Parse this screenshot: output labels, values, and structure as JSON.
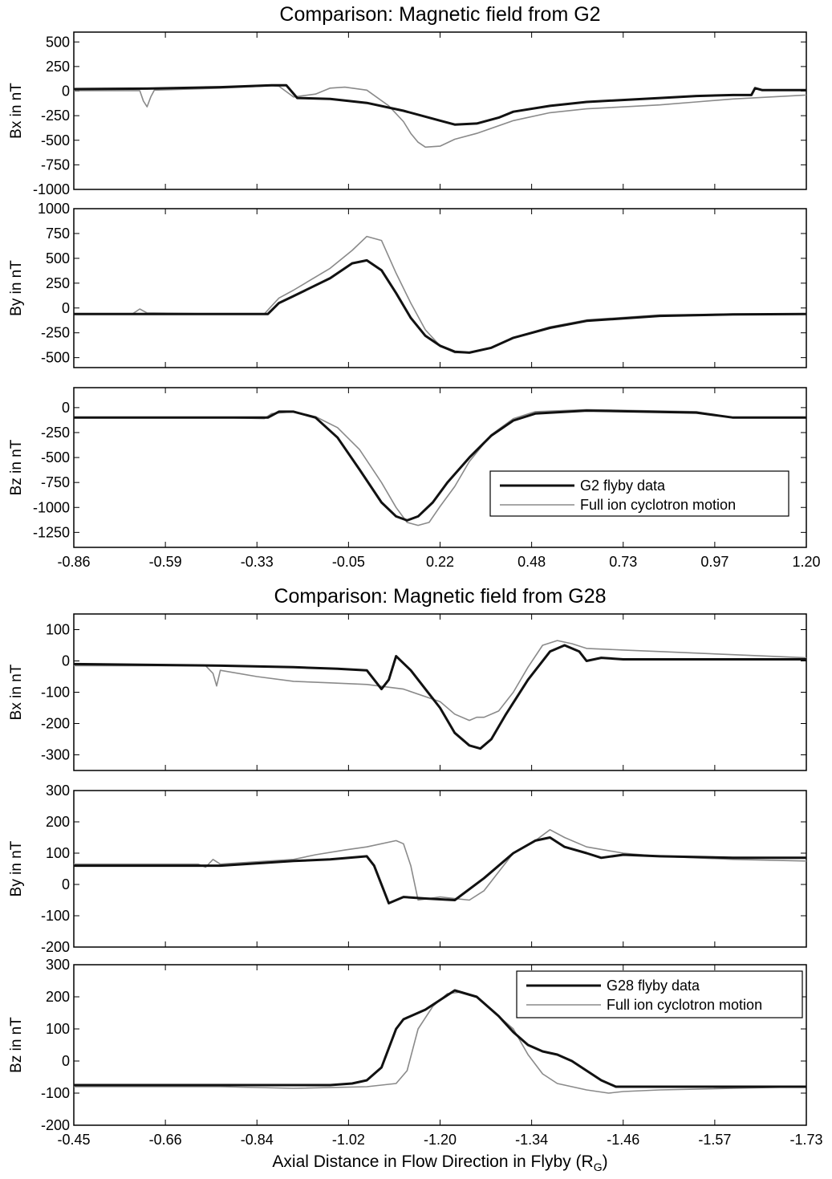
{
  "figure1": {
    "title": "Comparison: Magnetic field from G2",
    "legend": {
      "series": [
        "G2 flyby data",
        "Full ion cyclotron motion"
      ]
    }
  },
  "figure2": {
    "title": "Comparison: Magnetic field from G28",
    "legend": {
      "series": [
        "G28 flyby data",
        "Full ion cyclotron motion"
      ]
    }
  },
  "xlabel": {
    "main": "Axial Distance in Flow Direction in Flyby (R",
    "sub": "G",
    "close": ")"
  },
  "colors": {
    "flyby": "#111111",
    "model": "#8a8a8a"
  },
  "chart_data": [
    {
      "type": "line",
      "group": "G2",
      "panel": "Bx",
      "ylabel": "Bx in nT",
      "ylim": [
        -1000,
        600
      ],
      "yticks": [
        500,
        250,
        0,
        -250,
        -500,
        -750,
        -1000
      ],
      "xticks": [
        "-0.86",
        "-0.59",
        "-0.33",
        "-0.05",
        "0.22",
        "0.48",
        "0.73",
        "0.97",
        "1.20"
      ],
      "show_xtick_labels": false,
      "legend": null,
      "series": [
        {
          "name": "G2 flyby data",
          "x": [
            0,
            10,
            20,
            27,
            29,
            30.5,
            35,
            40,
            45,
            50,
            52,
            55,
            58,
            60,
            65,
            70,
            80,
            85,
            90,
            92.5,
            93,
            94,
            100
          ],
          "y": [
            20,
            25,
            40,
            60,
            60,
            -70,
            -80,
            -120,
            -200,
            -300,
            -340,
            -330,
            -270,
            -210,
            -150,
            -110,
            -70,
            -50,
            -40,
            -40,
            30,
            10,
            10
          ]
        },
        {
          "name": "Full ion cyclotron motion",
          "x": [
            0,
            9,
            9.5,
            10,
            10.5,
            11,
            20,
            27,
            28,
            30,
            33,
            35,
            37,
            40,
            43,
            45,
            46,
            47,
            48,
            50,
            52,
            55,
            60,
            65,
            70,
            80,
            85,
            90,
            100
          ],
          "y": [
            5,
            5,
            -100,
            -160,
            -60,
            10,
            30,
            55,
            50,
            -60,
            -30,
            30,
            40,
            10,
            -150,
            -310,
            -430,
            -520,
            -570,
            -560,
            -490,
            -430,
            -300,
            -220,
            -180,
            -140,
            -110,
            -80,
            -40
          ]
        }
      ]
    },
    {
      "type": "line",
      "group": "G2",
      "panel": "By",
      "ylabel": "By in nT",
      "ylim": [
        -600,
        1000
      ],
      "yticks": [
        1000,
        750,
        500,
        250,
        0,
        -250,
        -500
      ],
      "xticks": [
        "-0.86",
        "-0.59",
        "-0.33",
        "-0.05",
        "0.22",
        "0.48",
        "0.73",
        "0.97",
        "1.20"
      ],
      "show_xtick_labels": false,
      "legend": null,
      "series": [
        {
          "name": "G2 flyby data",
          "x": [
            0,
            20,
            26.5,
            28,
            30,
            35,
            38,
            40,
            42,
            44,
            46,
            48,
            50,
            52,
            54,
            57,
            60,
            65,
            70,
            80,
            90,
            100
          ],
          "y": [
            -60,
            -60,
            -60,
            50,
            120,
            300,
            450,
            480,
            380,
            150,
            -100,
            -280,
            -380,
            -440,
            -450,
            -400,
            -300,
            -200,
            -130,
            -80,
            -65,
            -60
          ]
        },
        {
          "name": "Full ion cyclotron motion",
          "x": [
            0,
            8,
            9,
            10,
            20,
            26,
            28,
            30,
            35,
            38,
            40,
            42,
            44,
            46,
            48,
            50,
            52,
            54,
            57,
            60,
            65,
            70,
            80,
            90,
            100
          ],
          "y": [
            -60,
            -60,
            -10,
            -50,
            -60,
            -60,
            100,
            180,
            400,
            580,
            720,
            680,
            350,
            50,
            -220,
            -380,
            -450,
            -450,
            -400,
            -300,
            -190,
            -120,
            -70,
            -60,
            -60
          ]
        }
      ]
    },
    {
      "type": "line",
      "group": "G2",
      "panel": "Bz",
      "ylabel": "Bz in nT",
      "ylim": [
        -1400,
        200
      ],
      "yticks": [
        0,
        -250,
        -500,
        -750,
        -1000,
        -1250
      ],
      "xticks": [
        "-0.86",
        "-0.59",
        "-0.33",
        "-0.05",
        "0.22",
        "0.48",
        "0.73",
        "0.97",
        "1.20"
      ],
      "show_xtick_labels": true,
      "legend": "bottom-right",
      "series": [
        {
          "name": "G2 flyby data",
          "x": [
            0,
            20,
            26.5,
            28,
            30,
            33,
            36,
            39,
            42,
            44,
            45.5,
            47,
            49,
            51,
            54,
            57,
            60,
            63,
            70,
            85,
            88,
            90,
            100
          ],
          "y": [
            -100,
            -100,
            -100,
            -40,
            -40,
            -100,
            -300,
            -620,
            -950,
            -1090,
            -1130,
            -1090,
            -950,
            -750,
            -500,
            -280,
            -130,
            -60,
            -30,
            -50,
            -80,
            -100,
            -100
          ]
        },
        {
          "name": "Full ion cyclotron motion",
          "x": [
            0,
            20,
            26,
            27,
            30,
            33,
            36,
            39,
            42,
            44,
            45.5,
            47,
            48.5,
            50,
            52,
            54,
            57,
            60,
            63,
            70,
            85,
            88,
            90,
            100
          ],
          "y": [
            -100,
            -100,
            -110,
            -60,
            -40,
            -90,
            -200,
            -420,
            -750,
            -1000,
            -1150,
            -1180,
            -1150,
            -990,
            -790,
            -540,
            -270,
            -110,
            -40,
            -20,
            -40,
            -80,
            -100,
            -100
          ]
        }
      ]
    },
    {
      "type": "line",
      "group": "G28",
      "panel": "Bx",
      "ylabel": "Bx in nT",
      "ylim": [
        -350,
        150
      ],
      "yticks": [
        100,
        0,
        -100,
        -200,
        -300
      ],
      "xticks": [
        "-0.45",
        "-0.66",
        "-0.84",
        "-1.02",
        "-1.20",
        "-1.34",
        "-1.46",
        "-1.57",
        "-1.73"
      ],
      "show_xtick_labels": false,
      "legend": null,
      "series": [
        {
          "name": "G28 flyby data",
          "x": [
            0,
            20,
            30,
            36,
            40,
            42,
            43,
            44,
            46,
            48,
            50,
            52,
            54,
            55.5,
            57,
            59,
            62,
            65,
            67,
            69,
            70,
            72,
            75,
            80,
            90,
            100
          ],
          "y": [
            -10,
            -15,
            -20,
            -25,
            -30,
            -90,
            -60,
            15,
            -30,
            -90,
            -150,
            -230,
            -270,
            -280,
            -250,
            -170,
            -60,
            30,
            50,
            30,
            0,
            10,
            5,
            5,
            5,
            5
          ]
        },
        {
          "name": "Full ion cyclotron motion",
          "x": [
            0,
            18,
            19,
            19.5,
            20,
            25,
            30,
            35,
            40,
            45,
            50,
            52,
            54,
            55,
            56,
            58,
            60,
            62,
            64,
            66,
            68,
            70,
            75,
            80,
            90,
            100
          ],
          "y": [
            -15,
            -15,
            -40,
            -80,
            -30,
            -50,
            -65,
            -70,
            -75,
            -90,
            -130,
            -170,
            -190,
            -180,
            -180,
            -160,
            -100,
            -20,
            50,
            65,
            55,
            40,
            35,
            30,
            20,
            10
          ]
        }
      ]
    },
    {
      "type": "line",
      "group": "G28",
      "panel": "By",
      "ylabel": "By in nT",
      "ylim": [
        -200,
        300
      ],
      "yticks": [
        300,
        200,
        100,
        0,
        -100,
        -200
      ],
      "xticks": [
        "-0.45",
        "-0.66",
        "-0.84",
        "-1.02",
        "-1.20",
        "-1.34",
        "-1.46",
        "-1.57",
        "-1.73"
      ],
      "show_xtick_labels": false,
      "legend": null,
      "series": [
        {
          "name": "G28 flyby data",
          "x": [
            0,
            20,
            30,
            35,
            40,
            41,
            43,
            45,
            48,
            52,
            56,
            60,
            63,
            65,
            67,
            70,
            72,
            75,
            80,
            90,
            100
          ],
          "y": [
            60,
            60,
            75,
            80,
            90,
            60,
            -60,
            -40,
            -45,
            -50,
            20,
            100,
            140,
            150,
            120,
            100,
            85,
            95,
            90,
            85,
            85
          ]
        },
        {
          "name": "Full ion cyclotron motion",
          "x": [
            0,
            17,
            18,
            19,
            20,
            30,
            33,
            37,
            40,
            44,
            45,
            46,
            47,
            50,
            54,
            56,
            58,
            60,
            63,
            65,
            67,
            70,
            75,
            80,
            90,
            100
          ],
          "y": [
            65,
            65,
            55,
            80,
            65,
            80,
            95,
            110,
            120,
            140,
            130,
            60,
            -50,
            -40,
            -50,
            -20,
            40,
            100,
            140,
            175,
            150,
            120,
            100,
            90,
            80,
            75
          ]
        }
      ]
    },
    {
      "type": "line",
      "group": "G28",
      "panel": "Bz",
      "ylabel": "Bz in nT",
      "ylim": [
        -200,
        300
      ],
      "yticks": [
        300,
        200,
        100,
        0,
        -100,
        -200
      ],
      "xticks": [
        "-0.45",
        "-0.66",
        "-0.84",
        "-1.02",
        "-1.20",
        "-1.34",
        "-1.46",
        "-1.57",
        "-1.73"
      ],
      "show_xtick_labels": true,
      "legend": "top-right",
      "series": [
        {
          "name": "G28 flyby data",
          "x": [
            0,
            20,
            35,
            38,
            40,
            42,
            43,
            44,
            45,
            46,
            48,
            52,
            55,
            58,
            60,
            62,
            64,
            66,
            68,
            70,
            72,
            74,
            75,
            80,
            100
          ],
          "y": [
            -75,
            -75,
            -75,
            -70,
            -60,
            -20,
            40,
            100,
            130,
            140,
            160,
            220,
            200,
            140,
            90,
            50,
            30,
            20,
            0,
            -30,
            -60,
            -80,
            -80,
            -80,
            -80
          ]
        },
        {
          "name": "Full ion cyclotron motion",
          "x": [
            0,
            20,
            30,
            40,
            44,
            45.5,
            47,
            49,
            51,
            53,
            55,
            57,
            60,
            62,
            64,
            66,
            70,
            73,
            75,
            80,
            100
          ],
          "y": [
            -80,
            -80,
            -85,
            -80,
            -70,
            -30,
            100,
            170,
            210,
            215,
            200,
            160,
            100,
            20,
            -40,
            -70,
            -90,
            -100,
            -95,
            -90,
            -80
          ]
        }
      ]
    }
  ]
}
